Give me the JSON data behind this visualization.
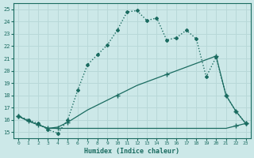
{
  "xlabel": "Humidex (Indice chaleur)",
  "xlim": [
    -0.5,
    23.5
  ],
  "ylim": [
    14.5,
    25.5
  ],
  "xticks": [
    0,
    1,
    2,
    3,
    4,
    5,
    6,
    7,
    8,
    9,
    10,
    11,
    12,
    13,
    14,
    15,
    16,
    17,
    18,
    19,
    20,
    21,
    22,
    23
  ],
  "yticks": [
    15,
    16,
    17,
    18,
    19,
    20,
    21,
    22,
    23,
    24,
    25
  ],
  "bg_color": "#cce8e8",
  "line_color": "#1a6b60",
  "grid_color": "#b8d8d8",
  "line1_x": [
    0,
    1,
    2,
    3,
    4,
    5,
    6,
    7,
    8,
    9,
    10,
    11,
    12,
    13,
    14,
    15,
    16,
    17,
    18,
    19,
    20,
    21,
    22,
    23
  ],
  "line1_y": [
    16.3,
    16.0,
    15.7,
    15.2,
    14.9,
    16.0,
    18.4,
    20.5,
    21.3,
    22.1,
    23.3,
    24.8,
    24.9,
    24.1,
    24.3,
    22.5,
    22.7,
    23.3,
    22.6,
    19.5,
    21.1,
    18.0,
    16.7,
    15.7
  ],
  "line2_x": [
    0,
    1,
    2,
    3,
    4,
    5,
    6,
    7,
    8,
    9,
    10,
    11,
    12,
    13,
    14,
    15,
    16,
    17,
    18,
    19,
    20,
    21,
    22,
    23
  ],
  "line2_y": [
    16.3,
    15.9,
    15.6,
    15.3,
    15.3,
    15.3,
    15.3,
    15.3,
    15.3,
    15.3,
    15.3,
    15.3,
    15.3,
    15.3,
    15.3,
    15.3,
    15.3,
    15.3,
    15.3,
    15.3,
    15.3,
    15.3,
    15.5,
    15.7
  ],
  "line3_x": [
    0,
    1,
    2,
    3,
    4,
    5,
    6,
    7,
    8,
    9,
    10,
    11,
    12,
    13,
    14,
    15,
    16,
    17,
    18,
    19,
    20,
    21,
    22,
    23
  ],
  "line3_y": [
    16.3,
    15.9,
    15.6,
    15.3,
    15.4,
    15.8,
    16.3,
    16.8,
    17.2,
    17.6,
    18.0,
    18.4,
    18.8,
    19.1,
    19.4,
    19.7,
    20.0,
    20.3,
    20.6,
    20.9,
    21.2,
    18.0,
    16.7,
    15.7
  ],
  "line2_markers_x": [
    0,
    1,
    2,
    3,
    4,
    22,
    23
  ],
  "line2_markers_y": [
    16.3,
    15.9,
    15.6,
    15.3,
    15.3,
    15.5,
    15.7
  ],
  "line3_markers_x": [
    0,
    5,
    10,
    15,
    20,
    21,
    22,
    23
  ],
  "line3_markers_y": [
    16.3,
    15.8,
    18.0,
    19.7,
    21.2,
    18.0,
    16.7,
    15.7
  ]
}
